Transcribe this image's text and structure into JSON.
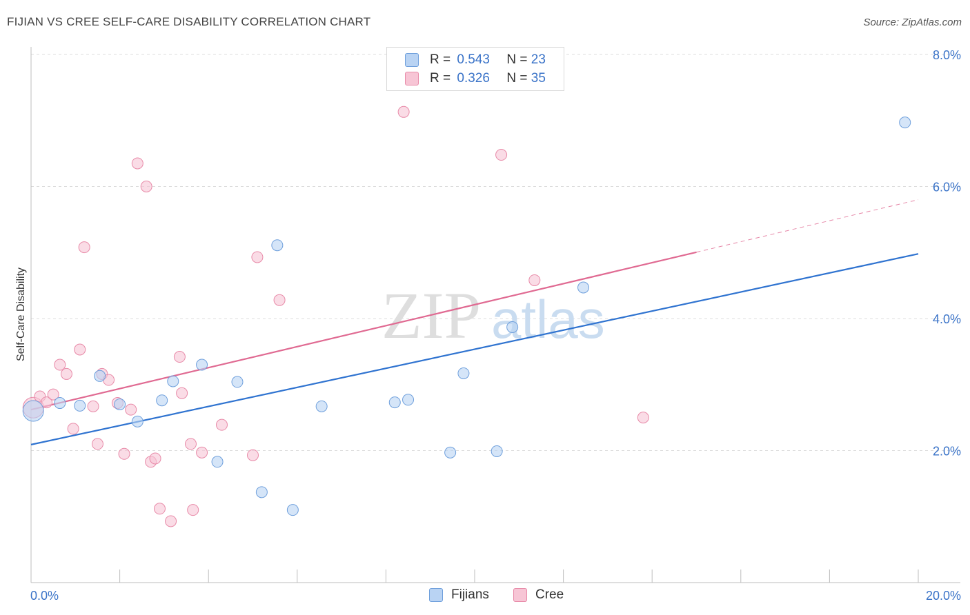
{
  "header": {
    "title": "FIJIAN VS CREE SELF-CARE DISABILITY CORRELATION CHART",
    "source": "Source: ZipAtlas.com"
  },
  "watermark": {
    "text_a": "ZIP",
    "text_b": "atlas"
  },
  "colors": {
    "fijians_fill": "#b9d3f3",
    "fijians_stroke": "#6e9fdc",
    "fijians_line": "#2f73d0",
    "cree_fill": "#f7c5d5",
    "cree_stroke": "#e88aa8",
    "cree_line": "#e06a92",
    "accent_text": "#3a73c8"
  },
  "legend": {
    "rows": [
      {
        "r_label": "R =",
        "r_value": "0.543",
        "n_label": "N =",
        "n_value": "23"
      },
      {
        "r_label": "R =",
        "r_value": "0.326",
        "n_label": "N =",
        "n_value": "35"
      }
    ]
  },
  "bottom_legend": {
    "fijians": "Fijians",
    "cree": "Cree"
  },
  "chart_data": {
    "type": "scatter",
    "title": "FIJIAN VS CREE SELF-CARE DISABILITY CORRELATION CHART",
    "xlabel": "",
    "ylabel": "Self-Care Disability",
    "xlim": [
      0,
      20
    ],
    "ylim": [
      0,
      8.2
    ],
    "x_tick_labels": [
      "0.0%",
      "20.0%"
    ],
    "y_ticks": [
      2,
      4,
      6,
      8
    ],
    "y_tick_labels": [
      "2.0%",
      "4.0%",
      "6.0%",
      "8.0%"
    ],
    "grid": true,
    "legend_position": "top-center",
    "series": [
      {
        "name": "Fijians",
        "r": 0.543,
        "n": 23,
        "trend": {
          "x0": 0,
          "y0": 2.09,
          "x1": 20,
          "y1": 4.98,
          "dashed_from": null
        },
        "points": [
          {
            "x": 0.05,
            "y": 2.6,
            "big": true
          },
          {
            "x": 0.65,
            "y": 2.72
          },
          {
            "x": 1.1,
            "y": 2.68
          },
          {
            "x": 1.55,
            "y": 3.13
          },
          {
            "x": 2.0,
            "y": 2.7
          },
          {
            "x": 2.4,
            "y": 2.44
          },
          {
            "x": 2.95,
            "y": 2.76
          },
          {
            "x": 3.2,
            "y": 3.05
          },
          {
            "x": 3.85,
            "y": 3.3
          },
          {
            "x": 4.2,
            "y": 1.83
          },
          {
            "x": 4.65,
            "y": 3.04
          },
          {
            "x": 5.2,
            "y": 1.37
          },
          {
            "x": 5.55,
            "y": 5.11
          },
          {
            "x": 5.9,
            "y": 1.1
          },
          {
            "x": 6.55,
            "y": 2.67
          },
          {
            "x": 8.2,
            "y": 2.73
          },
          {
            "x": 8.5,
            "y": 2.77
          },
          {
            "x": 9.45,
            "y": 1.97
          },
          {
            "x": 9.75,
            "y": 3.17
          },
          {
            "x": 10.5,
            "y": 1.99
          },
          {
            "x": 10.85,
            "y": 3.87
          },
          {
            "x": 12.45,
            "y": 4.47
          },
          {
            "x": 19.7,
            "y": 6.97
          }
        ]
      },
      {
        "name": "Cree",
        "r": 0.326,
        "n": 35,
        "trend": {
          "x0": 0,
          "y0": 2.62,
          "x1": 20,
          "y1": 5.8,
          "dashed_from": 15.0
        },
        "points": [
          {
            "x": 0.05,
            "y": 2.65,
            "big": true
          },
          {
            "x": 0.2,
            "y": 2.82
          },
          {
            "x": 0.35,
            "y": 2.73
          },
          {
            "x": 0.5,
            "y": 2.85
          },
          {
            "x": 0.65,
            "y": 3.3
          },
          {
            "x": 0.8,
            "y": 3.16
          },
          {
            "x": 0.95,
            "y": 2.33
          },
          {
            "x": 1.1,
            "y": 3.53
          },
          {
            "x": 1.2,
            "y": 5.08
          },
          {
            "x": 1.4,
            "y": 2.67
          },
          {
            "x": 1.5,
            "y": 2.1
          },
          {
            "x": 1.6,
            "y": 3.16
          },
          {
            "x": 1.75,
            "y": 3.07
          },
          {
            "x": 1.95,
            "y": 2.72
          },
          {
            "x": 2.1,
            "y": 1.95
          },
          {
            "x": 2.25,
            "y": 2.62
          },
          {
            "x": 2.4,
            "y": 6.35
          },
          {
            "x": 2.6,
            "y": 6.0
          },
          {
            "x": 2.7,
            "y": 1.83
          },
          {
            "x": 2.8,
            "y": 1.88
          },
          {
            "x": 2.9,
            "y": 1.12
          },
          {
            "x": 3.15,
            "y": 0.93
          },
          {
            "x": 3.35,
            "y": 3.42
          },
          {
            "x": 3.4,
            "y": 2.87
          },
          {
            "x": 3.6,
            "y": 2.1
          },
          {
            "x": 3.65,
            "y": 1.1
          },
          {
            "x": 3.85,
            "y": 1.97
          },
          {
            "x": 4.3,
            "y": 2.39
          },
          {
            "x": 5.0,
            "y": 1.93
          },
          {
            "x": 5.1,
            "y": 4.93
          },
          {
            "x": 5.6,
            "y": 4.28
          },
          {
            "x": 8.4,
            "y": 7.13
          },
          {
            "x": 10.6,
            "y": 6.48
          },
          {
            "x": 11.35,
            "y": 4.58
          },
          {
            "x": 13.8,
            "y": 2.5
          }
        ]
      }
    ]
  }
}
